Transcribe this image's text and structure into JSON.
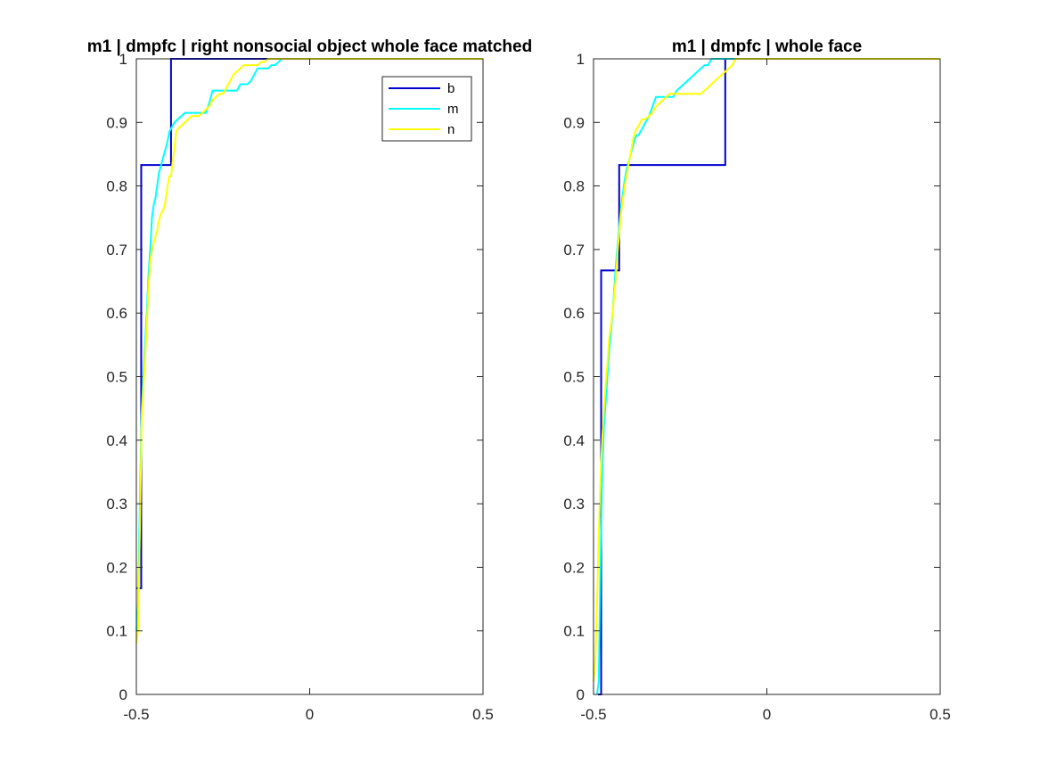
{
  "chart_data": [
    {
      "type": "line",
      "title": "m1 | dmpfc | right nonsocial object whole face matched",
      "xlabel": "",
      "ylabel": "",
      "xlim": [
        -0.5,
        0.5
      ],
      "ylim": [
        0,
        1
      ],
      "x_ticks": [
        -0.5,
        0,
        0.5
      ],
      "x_tick_labels": [
        "-0.5",
        "0",
        "0.5"
      ],
      "y_ticks": [
        0,
        0.1,
        0.2,
        0.3,
        0.4,
        0.5,
        0.6,
        0.7,
        0.8,
        0.9,
        1
      ],
      "y_tick_labels": [
        "0",
        "0.1",
        "0.2",
        "0.3",
        "0.4",
        "0.5",
        "0.6",
        "0.7",
        "0.8",
        "0.9",
        "1"
      ],
      "legend": {
        "position": "top-right",
        "entries": [
          "b",
          "m",
          "n"
        ]
      },
      "series": [
        {
          "name": "b",
          "color": "#0000cc",
          "step": true,
          "x": [
            -0.5,
            -0.486,
            -0.416,
            -0.4,
            0.5
          ],
          "y": [
            0.167,
            0.833,
            0.833,
            1.0,
            1.0
          ]
        },
        {
          "name": "m",
          "color": "#00ffff",
          "step": false,
          "x": [
            -0.5,
            -0.495,
            -0.49,
            -0.485,
            -0.48,
            -0.475,
            -0.47,
            -0.465,
            -0.46,
            -0.455,
            -0.45,
            -0.445,
            -0.44,
            -0.435,
            -0.43,
            -0.425,
            -0.42,
            -0.415,
            -0.41,
            -0.405,
            -0.4,
            -0.39,
            -0.38,
            -0.37,
            -0.36,
            -0.35,
            -0.34,
            -0.33,
            -0.32,
            -0.31,
            -0.3,
            -0.29,
            -0.28,
            -0.27,
            -0.26,
            -0.25,
            -0.24,
            -0.23,
            -0.22,
            -0.21,
            -0.2,
            -0.19,
            -0.18,
            -0.17,
            -0.16,
            -0.15,
            -0.14,
            -0.13,
            -0.12,
            -0.11,
            -0.1,
            -0.09,
            -0.08,
            -0.07,
            0.5
          ],
          "y": [
            0.1,
            0.14,
            0.3,
            0.44,
            0.5,
            0.55,
            0.6,
            0.66,
            0.7,
            0.75,
            0.77,
            0.78,
            0.8,
            0.82,
            0.83,
            0.84,
            0.85,
            0.86,
            0.87,
            0.885,
            0.89,
            0.9,
            0.905,
            0.91,
            0.915,
            0.915,
            0.915,
            0.915,
            0.915,
            0.915,
            0.915,
            0.93,
            0.95,
            0.95,
            0.95,
            0.95,
            0.95,
            0.95,
            0.95,
            0.95,
            0.96,
            0.96,
            0.96,
            0.965,
            0.975,
            0.985,
            0.985,
            0.985,
            0.985,
            0.99,
            0.99,
            0.995,
            1.0,
            1.0,
            1.0
          ]
        },
        {
          "name": "n",
          "color": "#ffff00",
          "step": false,
          "x": [
            -0.5,
            -0.495,
            -0.49,
            -0.485,
            -0.48,
            -0.475,
            -0.47,
            -0.465,
            -0.46,
            -0.455,
            -0.45,
            -0.445,
            -0.44,
            -0.435,
            -0.43,
            -0.425,
            -0.42,
            -0.415,
            -0.41,
            -0.405,
            -0.4,
            -0.395,
            -0.39,
            -0.385,
            -0.38,
            -0.37,
            -0.36,
            -0.35,
            -0.34,
            -0.33,
            -0.32,
            -0.31,
            -0.3,
            -0.29,
            -0.28,
            -0.27,
            -0.26,
            -0.25,
            -0.24,
            -0.23,
            -0.22,
            -0.21,
            -0.2,
            -0.19,
            -0.18,
            -0.17,
            -0.16,
            -0.15,
            -0.14,
            -0.13,
            -0.12,
            -0.11,
            -0.1,
            0.5
          ],
          "y": [
            0.08,
            0.1,
            0.25,
            0.42,
            0.48,
            0.53,
            0.58,
            0.64,
            0.68,
            0.7,
            0.71,
            0.72,
            0.73,
            0.745,
            0.755,
            0.76,
            0.765,
            0.78,
            0.8,
            0.815,
            0.815,
            0.84,
            0.86,
            0.885,
            0.89,
            0.895,
            0.9,
            0.905,
            0.91,
            0.91,
            0.91,
            0.915,
            0.92,
            0.925,
            0.935,
            0.94,
            0.945,
            0.945,
            0.955,
            0.965,
            0.975,
            0.98,
            0.985,
            0.99,
            0.99,
            0.99,
            0.99,
            0.99,
            0.995,
            0.995,
            1.0,
            1.0,
            1.0,
            1.0
          ]
        }
      ]
    },
    {
      "type": "line",
      "title": "m1 | dmpfc | whole face",
      "xlabel": "",
      "ylabel": "",
      "xlim": [
        -0.5,
        0.5
      ],
      "ylim": [
        0,
        1
      ],
      "x_ticks": [
        -0.5,
        0,
        0.5
      ],
      "x_tick_labels": [
        "-0.5",
        "0",
        "0.5"
      ],
      "y_ticks": [
        0,
        0.1,
        0.2,
        0.3,
        0.4,
        0.5,
        0.6,
        0.7,
        0.8,
        0.9,
        1
      ],
      "y_tick_labels": [
        "0",
        "0.1",
        "0.2",
        "0.3",
        "0.4",
        "0.5",
        "0.6",
        "0.7",
        "0.8",
        "0.9",
        "1"
      ],
      "legend": null,
      "series": [
        {
          "name": "b",
          "color": "#0000cc",
          "step": true,
          "x": [
            -0.487,
            -0.478,
            -0.426,
            -0.13,
            -0.12,
            0.5
          ],
          "y": [
            0.0,
            0.667,
            0.833,
            0.833,
            1.0,
            1.0
          ]
        },
        {
          "name": "m",
          "color": "#00ffff",
          "step": false,
          "x": [
            -0.49,
            -0.485,
            -0.48,
            -0.475,
            -0.47,
            -0.465,
            -0.46,
            -0.455,
            -0.45,
            -0.445,
            -0.44,
            -0.435,
            -0.43,
            -0.425,
            -0.42,
            -0.415,
            -0.41,
            -0.405,
            -0.4,
            -0.395,
            -0.39,
            -0.385,
            -0.38,
            -0.375,
            -0.37,
            -0.365,
            -0.36,
            -0.35,
            -0.34,
            -0.33,
            -0.32,
            -0.31,
            -0.3,
            -0.29,
            -0.28,
            -0.27,
            -0.26,
            -0.25,
            -0.24,
            -0.23,
            -0.22,
            -0.21,
            -0.2,
            -0.19,
            -0.18,
            -0.17,
            -0.16,
            -0.15,
            -0.14,
            -0.13,
            -0.12,
            -0.11,
            0.5
          ],
          "y": [
            0.0,
            0.02,
            0.2,
            0.35,
            0.42,
            0.46,
            0.5,
            0.54,
            0.57,
            0.6,
            0.64,
            0.68,
            0.71,
            0.74,
            0.77,
            0.79,
            0.81,
            0.825,
            0.835,
            0.845,
            0.855,
            0.865,
            0.875,
            0.88,
            0.88,
            0.885,
            0.89,
            0.9,
            0.91,
            0.925,
            0.94,
            0.94,
            0.94,
            0.94,
            0.94,
            0.94,
            0.95,
            0.955,
            0.96,
            0.965,
            0.97,
            0.975,
            0.98,
            0.985,
            0.99,
            0.99,
            1.0,
            1.0,
            1.0,
            1.0,
            1.0,
            1.0,
            1.0
          ]
        },
        {
          "name": "n",
          "color": "#ffff00",
          "step": false,
          "x": [
            -0.5,
            -0.495,
            -0.49,
            -0.485,
            -0.48,
            -0.475,
            -0.47,
            -0.465,
            -0.46,
            -0.455,
            -0.45,
            -0.445,
            -0.44,
            -0.435,
            -0.43,
            -0.425,
            -0.42,
            -0.415,
            -0.41,
            -0.405,
            -0.4,
            -0.395,
            -0.39,
            -0.385,
            -0.38,
            -0.37,
            -0.36,
            -0.35,
            -0.34,
            -0.33,
            -0.32,
            -0.31,
            -0.3,
            -0.29,
            -0.28,
            -0.27,
            -0.26,
            -0.25,
            -0.24,
            -0.23,
            -0.22,
            -0.21,
            -0.2,
            -0.19,
            -0.18,
            -0.17,
            -0.16,
            -0.15,
            -0.14,
            -0.13,
            -0.12,
            -0.11,
            -0.1,
            -0.09,
            0.5
          ],
          "y": [
            0.02,
            0.05,
            0.14,
            0.25,
            0.34,
            0.4,
            0.45,
            0.49,
            0.52,
            0.56,
            0.58,
            0.6,
            0.63,
            0.66,
            0.7,
            0.73,
            0.76,
            0.78,
            0.8,
            0.815,
            0.83,
            0.845,
            0.86,
            0.875,
            0.885,
            0.895,
            0.905,
            0.905,
            0.91,
            0.915,
            0.925,
            0.93,
            0.935,
            0.94,
            0.945,
            0.945,
            0.945,
            0.945,
            0.945,
            0.945,
            0.945,
            0.945,
            0.945,
            0.945,
            0.95,
            0.955,
            0.96,
            0.965,
            0.97,
            0.975,
            0.98,
            0.985,
            0.99,
            1.0,
            1.0
          ]
        }
      ]
    }
  ]
}
